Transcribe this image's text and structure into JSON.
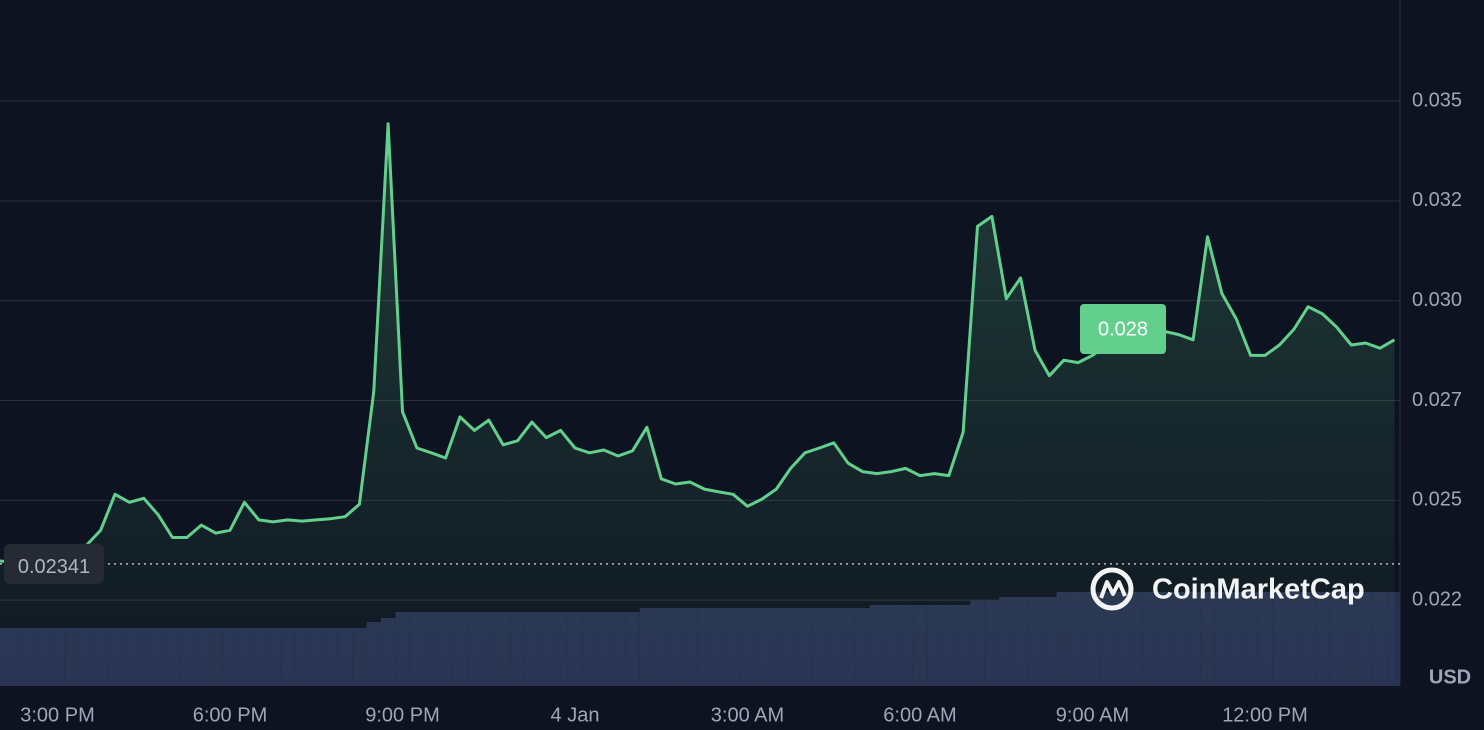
{
  "chart_data": {
    "type": "line",
    "categories": [
      null,
      null,
      null,
      null,
      "3:00 PM",
      null,
      null,
      null,
      null,
      null,
      null,
      null,
      null,
      null,
      null,
      null,
      "6:00 PM",
      null,
      null,
      null,
      null,
      null,
      null,
      null,
      null,
      null,
      null,
      null,
      "9:00 PM",
      null,
      null,
      null,
      null,
      null,
      null,
      null,
      null,
      null,
      null,
      null,
      "4 Jan",
      null,
      null,
      null,
      null,
      null,
      null,
      null,
      null,
      null,
      null,
      null,
      "3:00 AM",
      null,
      null,
      null,
      null,
      null,
      null,
      null,
      null,
      null,
      null,
      null,
      "6:00 AM",
      null,
      null,
      null,
      null,
      null,
      null,
      null,
      null,
      null,
      null,
      null,
      "9:00 AM",
      null,
      null,
      null,
      null,
      null,
      null,
      null,
      null,
      null,
      null,
      null,
      "12:00 PM",
      null,
      null,
      null,
      null,
      null,
      null,
      null,
      null,
      null
    ],
    "series": [
      {
        "color": "#63cf8c",
        "values": [
          0.02348,
          0.02345,
          0.02348,
          0.02348,
          0.02361,
          0.02374,
          0.02387,
          0.02425,
          0.02515,
          0.02495,
          0.02505,
          0.02464,
          0.02407,
          0.02407,
          0.02438,
          0.02418,
          0.02425,
          0.02495,
          0.02451,
          0.02446,
          0.02451,
          0.02448,
          0.02451,
          0.02454,
          0.02459,
          0.0249,
          0.02773,
          0.03443,
          0.02722,
          0.02631,
          0.02619,
          0.02606,
          0.02709,
          0.02675,
          0.02701,
          0.02639,
          0.02649,
          0.02696,
          0.02657,
          0.02675,
          0.02631,
          0.02619,
          0.02626,
          0.02611,
          0.02624,
          0.02683,
          0.02554,
          0.02541,
          0.02546,
          0.02528,
          0.02521,
          0.02515,
          0.02485,
          0.02503,
          0.02528,
          0.0258,
          0.02619,
          0.02631,
          0.02644,
          0.02593,
          0.02572,
          0.02567,
          0.02572,
          0.0258,
          0.02562,
          0.02567,
          0.02562,
          0.0267,
          0.03186,
          0.03211,
          0.03005,
          0.03057,
          0.02876,
          0.02812,
          0.02851,
          0.02845,
          0.02863,
          0.02889,
          0.02902,
          0.02915,
          0.02928,
          0.02923,
          0.02915,
          0.02902,
          0.0316,
          0.03018,
          0.02954,
          0.02863,
          0.02863,
          0.02889,
          0.02928,
          0.02985,
          0.02967,
          0.02933,
          0.02889,
          0.02894,
          0.02881,
          0.02902
        ]
      }
    ],
    "volume": {
      "color": "#283152",
      "values": [
        58,
        58,
        58,
        58,
        58,
        58,
        58,
        58,
        58,
        58,
        58,
        58,
        58,
        58,
        58,
        58,
        58,
        58,
        58,
        58,
        58,
        58,
        58,
        58,
        58,
        58,
        64,
        68,
        74,
        74,
        74,
        74,
        74,
        74,
        74,
        74,
        74,
        74,
        74,
        74,
        74,
        74,
        74,
        74,
        74,
        78,
        78,
        78,
        78,
        78,
        78,
        78,
        78,
        78,
        78,
        78,
        78,
        78,
        78,
        78,
        78,
        81,
        81,
        81,
        81,
        81,
        81,
        81,
        86,
        86,
        89,
        89,
        89,
        89,
        94,
        94,
        94,
        94,
        94,
        94,
        94,
        94,
        94,
        94,
        94,
        94,
        94,
        94,
        94,
        94,
        94,
        94,
        94,
        94,
        94,
        94,
        94,
        94
      ]
    },
    "ylim": [
      0.02035,
      0.03753
    ],
    "yticks": [
      {
        "value": 0.0225,
        "label": "0.022"
      },
      0.025,
      {
        "value": 0.0275,
        "label": "0.027"
      },
      {
        "value": 0.03,
        "label": "0.030"
      },
      {
        "value": 0.0325,
        "label": "0.032"
      },
      0.035
    ],
    "grid": true,
    "reference": 0.02341,
    "annotation": "0.028",
    "currency": "USD",
    "watermark": "CoinMarketCap"
  }
}
